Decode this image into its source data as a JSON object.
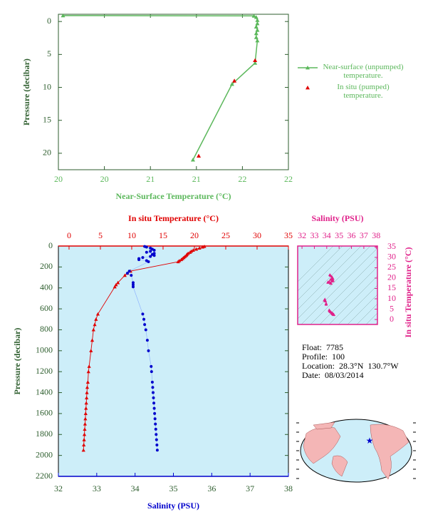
{
  "chart_data": [
    {
      "type": "line",
      "xlabel": "Near-Surface Temperature (°C)",
      "ylabel": "Pressure (decibar)",
      "xlim": [
        20,
        22
      ],
      "xticks": [
        {
          "value": 20,
          "label": "20"
        },
        {
          "value": 20.4,
          "label": "20"
        },
        {
          "value": 20.8,
          "label": "21"
        },
        {
          "value": 21.2,
          "label": "21"
        },
        {
          "value": 21.6,
          "label": "22"
        },
        {
          "value": 22,
          "label": "22"
        }
      ],
      "ylim": [
        -1.1,
        22.5
      ],
      "yticks": [
        0,
        5,
        10,
        15,
        20
      ],
      "y_inverted": true,
      "legend": "right",
      "series": [
        {
          "name": "Near-surface (unpumped) temperature.",
          "color": "#5cb85c",
          "marker": "triangle",
          "line": true,
          "x": [
            20.04,
            21.7,
            21.72,
            21.73,
            21.73,
            21.72,
            21.73,
            21.72,
            21.72,
            21.73,
            21.71,
            21.51,
            21.17
          ],
          "y": [
            -0.9,
            -0.85,
            -0.65,
            -0.2,
            0.3,
            0.8,
            1.3,
            1.8,
            2.4,
            2.9,
            6.3,
            9.5,
            21.0
          ]
        },
        {
          "name": "In situ (pumped) temperature.",
          "color": "#e00000",
          "marker": "triangle",
          "line": false,
          "x": [
            21.71,
            21.53,
            21.22
          ],
          "y": [
            5.9,
            9.0,
            20.4
          ]
        }
      ]
    },
    {
      "type": "line",
      "xlabel": "Salinity (PSU)",
      "x2label": "In situ Temperature (°C)",
      "ylabel": "Pressure (decibar)",
      "xlim": [
        32,
        38
      ],
      "xticks": [
        32,
        33,
        34,
        35,
        36,
        37,
        38
      ],
      "x2lim": [
        -1.7,
        35
      ],
      "x2ticks": [
        0,
        5,
        10,
        15,
        20,
        25,
        30,
        35
      ],
      "ylim": [
        0,
        2200
      ],
      "yticks": [
        0,
        200,
        400,
        600,
        800,
        1000,
        1200,
        1400,
        1600,
        1800,
        2000,
        2200
      ],
      "y_inverted": true,
      "background": "#cdeef9",
      "y": [
        4,
        10,
        20,
        30,
        40,
        50,
        60,
        70,
        80,
        90,
        100,
        110,
        120,
        130,
        140,
        150,
        240,
        260,
        280,
        350,
        370,
        390,
        650,
        700,
        750,
        800,
        900,
        1000,
        1150,
        1200,
        1300,
        1350,
        1400,
        1450,
        1500,
        1550,
        1600,
        1650,
        1700,
        1750,
        1800,
        1850,
        1900,
        1950
      ],
      "series": [
        {
          "color": "#e00000",
          "marker": "triangle",
          "axis": "x2",
          "values": [
            21.6,
            21.3,
            20.8,
            20.3,
            19.8,
            19.5,
            19.3,
            19.0,
            18.8,
            18.7,
            18.5,
            18.3,
            18.1,
            17.9,
            17.6,
            17.4,
            9.8,
            9.3,
            8.9,
            7.8,
            7.5,
            7.3,
            4.6,
            4.3,
            4.1,
            3.9,
            3.7,
            3.5,
            3.2,
            3.1,
            3.0,
            2.9,
            2.85,
            2.8,
            2.75,
            2.7,
            2.65,
            2.6,
            2.55,
            2.5,
            2.45,
            2.4,
            2.35,
            2.3
          ]
        },
        {
          "color": "#0000cc",
          "marker": "dot",
          "values": [
            34.25,
            34.3,
            34.4,
            34.45,
            34.5,
            34.4,
            34.3,
            34.5,
            34.45,
            34.5,
            34.4,
            34.2,
            34.1,
            34.1,
            34.3,
            34.35,
            33.85,
            33.8,
            33.9,
            33.95,
            33.95,
            33.95,
            34.2,
            34.23,
            34.25,
            34.28,
            34.32,
            34.35,
            34.42,
            34.43,
            34.45,
            34.46,
            34.47,
            34.48,
            34.49,
            34.5,
            34.51,
            34.52,
            34.53,
            34.54,
            34.55,
            34.56,
            34.57,
            34.58
          ]
        }
      ]
    },
    {
      "type": "scatter",
      "xlabel": "Salinity (PSU)",
      "ylabel": "In situ Temperature (°C)",
      "xlim": [
        31.65,
        38.1
      ],
      "xticks": [
        32,
        33,
        34,
        35,
        36,
        37,
        38
      ],
      "ylim": [
        -2.4,
        35.5
      ],
      "yticks": [
        0,
        5,
        10,
        15,
        20,
        25,
        30,
        35
      ],
      "color": "#e0218a"
    }
  ],
  "info": [
    "Float:  7785",
    "Profile:  100",
    "Location:  28.3°N  130.7°W",
    "Date:  08/03/2014"
  ]
}
